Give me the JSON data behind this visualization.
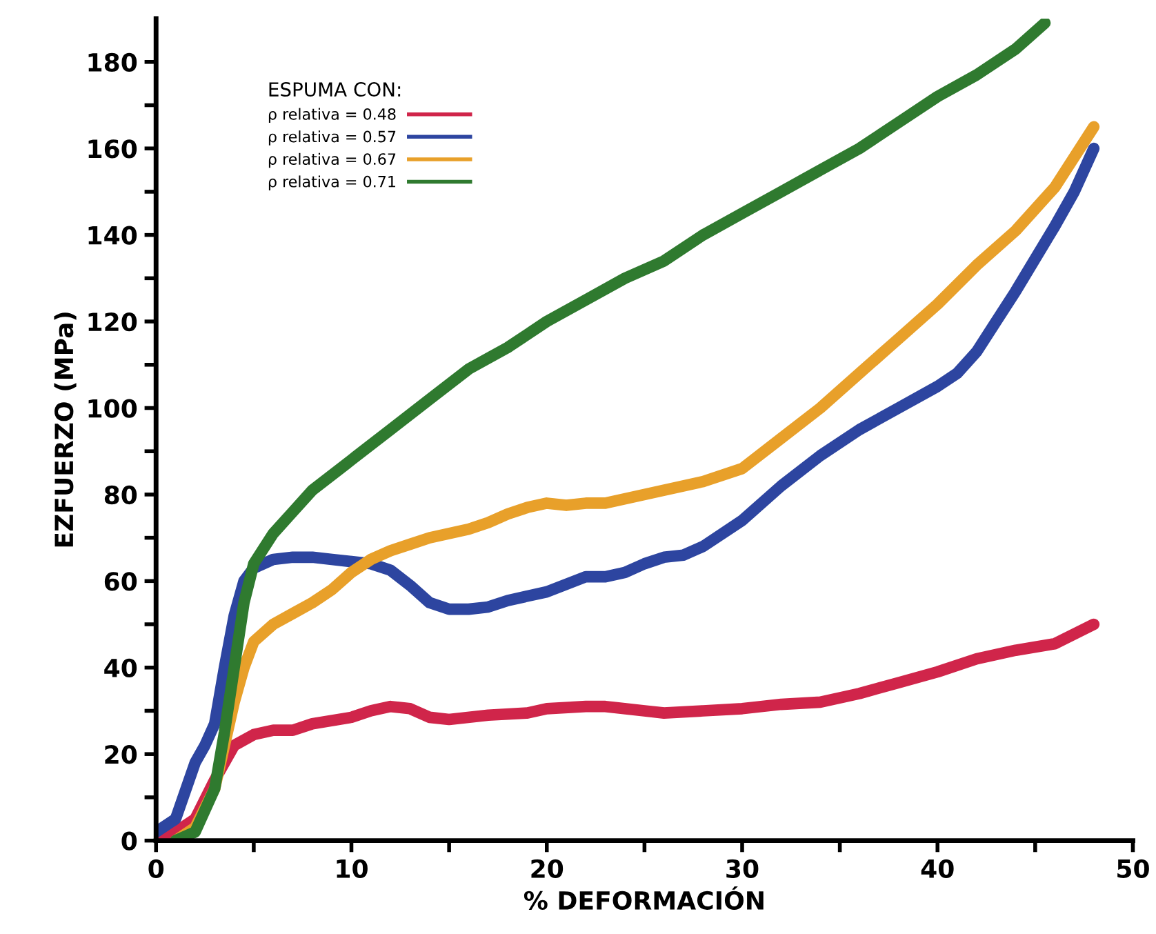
{
  "chart_data": {
    "type": "line",
    "xlabel": "% DEFORMACIÓN",
    "ylabel": "EZFUERZO (MPa)",
    "legend_title": "ESPUMA CON:",
    "legend": "top left",
    "grid": false,
    "marker": "none",
    "line_style": "solid",
    "xlim": [
      0,
      50
    ],
    "ylim": [
      0,
      190
    ],
    "xticks": [
      0,
      {
        "value": 5,
        "label": null
      },
      10,
      {
        "value": 15,
        "label": null
      },
      20,
      {
        "value": 25,
        "label": null
      },
      30,
      {
        "value": 35,
        "label": null
      },
      40,
      {
        "value": 45,
        "label": null
      },
      50
    ],
    "yticks": [
      0,
      {
        "value": 10,
        "label": null
      },
      20,
      {
        "value": 30,
        "label": null
      },
      40,
      {
        "value": 50,
        "label": null
      },
      60,
      {
        "value": 70,
        "label": null
      },
      80,
      {
        "value": 90,
        "label": null
      },
      100,
      {
        "value": 110,
        "label": null
      },
      120,
      {
        "value": 130,
        "label": null
      },
      140,
      {
        "value": 150,
        "label": null
      },
      160,
      {
        "value": 170,
        "label": null
      },
      180
    ],
    "series": [
      {
        "name": "ρ relativa = 0.48",
        "color": "#d0254a",
        "x": [
          0,
          1,
          2,
          3,
          4,
          5,
          6,
          7,
          8,
          10,
          11,
          12,
          13,
          14,
          15,
          17,
          19,
          20,
          22,
          23,
          25,
          26,
          28,
          30,
          32,
          34,
          36,
          38,
          40,
          42,
          44,
          46,
          48
        ],
        "values": [
          1,
          2,
          5,
          14,
          22,
          24.5,
          25.5,
          25.5,
          27,
          28.5,
          30,
          31,
          30.5,
          28.5,
          28,
          29,
          29.5,
          30.5,
          31,
          31,
          30,
          29.5,
          30,
          30.5,
          31.5,
          32,
          34,
          36.5,
          39,
          42,
          44,
          45.5,
          50
        ]
      },
      {
        "name": "ρ relativa = 0.57",
        "color": "#2d45a0",
        "x": [
          0,
          1,
          2,
          2.5,
          3,
          3.5,
          4,
          4.5,
          5,
          6,
          7,
          8,
          9,
          10,
          11,
          12,
          13,
          14,
          15,
          16,
          17,
          18,
          20,
          22,
          23,
          24,
          25,
          26,
          27,
          28,
          30,
          32,
          34,
          36,
          38,
          40,
          41,
          42,
          43,
          44,
          46,
          47,
          48
        ],
        "values": [
          2,
          5,
          18,
          22,
          27,
          40,
          52,
          60,
          63,
          65,
          65.5,
          65.5,
          65,
          64.5,
          64,
          62.5,
          59,
          55,
          53.5,
          53.5,
          54,
          55.5,
          57.5,
          61,
          61,
          62,
          64,
          65.5,
          66,
          68,
          74,
          82,
          89,
          95,
          100,
          105,
          108,
          113,
          120,
          127,
          142,
          150,
          160
        ]
      },
      {
        "name": "ρ relativa = 0.67",
        "color": "#e8a02a",
        "x": [
          1,
          2,
          3,
          3.5,
          4,
          4.5,
          5,
          6,
          7,
          8,
          9,
          10,
          11,
          12,
          13,
          14,
          15,
          16,
          17,
          18,
          19,
          20,
          21,
          22,
          23,
          24,
          26,
          28,
          30,
          32,
          34,
          36,
          38,
          40,
          42,
          44,
          46,
          48
        ],
        "values": [
          0,
          3,
          12,
          22,
          32,
          40,
          46,
          50,
          52.5,
          55,
          58,
          62,
          65,
          67,
          68.5,
          70,
          71,
          72,
          73.5,
          75.5,
          77,
          78,
          77.5,
          78,
          78,
          79,
          81,
          83,
          86,
          93,
          100,
          108,
          116,
          124,
          133,
          141,
          151,
          165
        ]
      },
      {
        "name": "ρ relativa = 0.71",
        "color": "#2f7a2f",
        "x": [
          1,
          2,
          3,
          3.5,
          4,
          4.5,
          5,
          6,
          7,
          8,
          10,
          12,
          14,
          16,
          18,
          20,
          22,
          24,
          26,
          28,
          30,
          32,
          34,
          36,
          38,
          40,
          42,
          44,
          45.5
        ],
        "values": [
          0,
          2,
          12,
          25,
          40,
          55,
          64,
          71,
          76,
          81,
          88,
          95,
          102,
          109,
          114,
          120,
          125,
          130,
          134,
          140,
          145,
          150,
          155,
          160,
          166,
          172,
          177,
          183,
          189
        ]
      }
    ]
  }
}
